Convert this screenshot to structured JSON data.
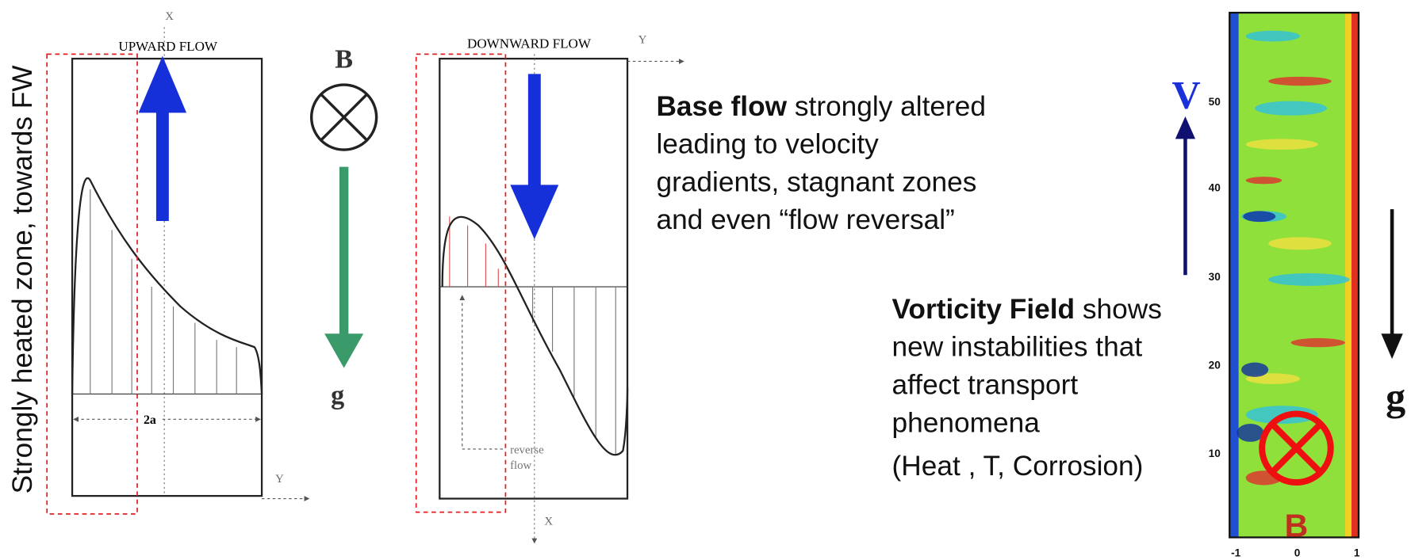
{
  "side_label": "Strongly heated zone, towards FW",
  "upward": {
    "title": "UPWARD FLOW",
    "x_axis": "X",
    "y_axis": "Y",
    "width_label": "2a"
  },
  "field": {
    "b": "B",
    "g": "g"
  },
  "downward": {
    "title": "DOWNWARD FLOW",
    "x_axis": "X",
    "y_axis": "Y",
    "annotation": [
      "reverse",
      "flow"
    ]
  },
  "base_flow": {
    "bold": "Base flow",
    "lines": [
      "strongly altered",
      "leading to velocity",
      "gradients, stagnant zones",
      "and even “flow reversal”"
    ]
  },
  "vorticity": {
    "bold": "Vorticity Field",
    "lines": [
      " shows",
      "new instabilities that",
      "affect transport",
      "phenomena"
    ],
    "note": "(Heat , T, Corrosion)"
  },
  "plot": {
    "velocity": "V",
    "gravity": "g",
    "field": "B",
    "yticks": [
      "10",
      "20",
      "30",
      "40",
      "50"
    ],
    "xticks": [
      "-1",
      "0",
      "1"
    ]
  }
}
